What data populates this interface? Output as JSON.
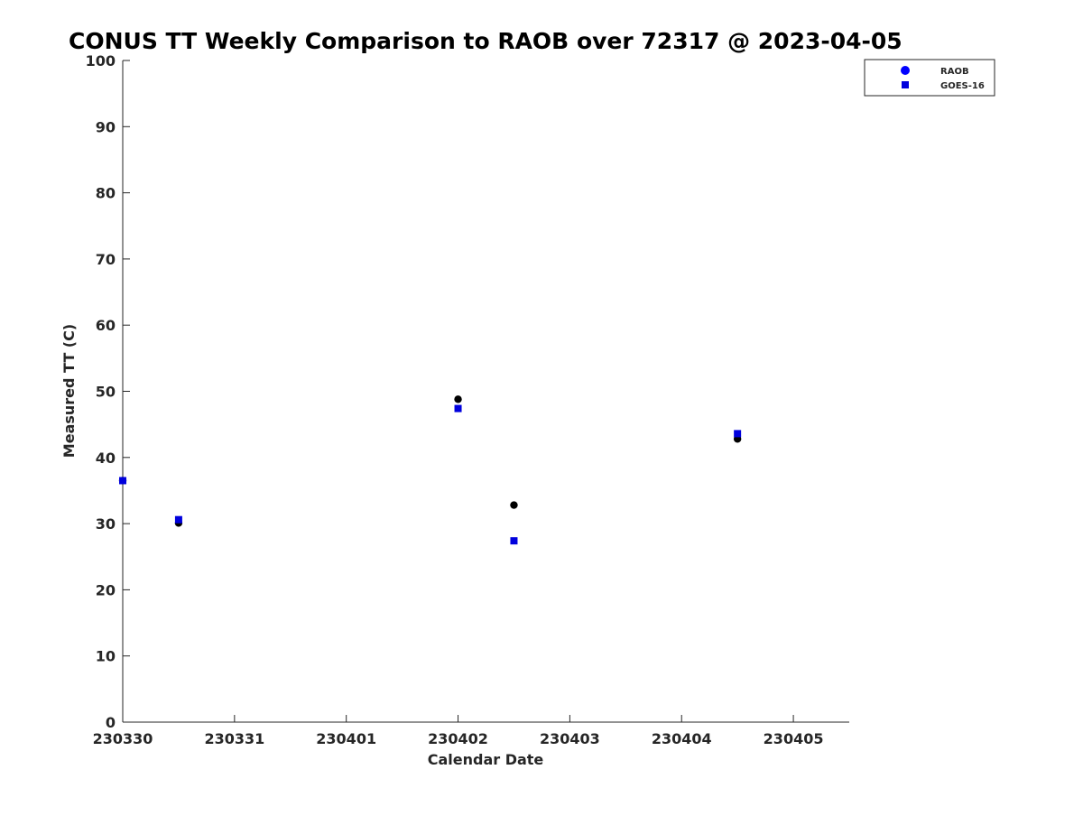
{
  "chart_data": {
    "type": "scatter",
    "title": "CONUS TT Weekly Comparison to RAOB over 72317 @ 2023-04-05",
    "xlabel": "Calendar Date",
    "ylabel": "Measured TT (C)",
    "x_ticks": [
      "230330",
      "230331",
      "230401",
      "230402",
      "230403",
      "230404",
      "230405"
    ],
    "xlim": [
      "2023-03-30T00:00",
      "2023-04-05T12:00"
    ],
    "ylim": [
      0,
      100
    ],
    "y_ticks": [
      0,
      10,
      20,
      30,
      40,
      50,
      60,
      70,
      80,
      90,
      100
    ],
    "grid": false,
    "legend_position": "top-right",
    "series": [
      {
        "name": "RAOB",
        "marker": "circle",
        "color": "#000000",
        "legend_color": "#0000ff",
        "points": [
          {
            "x": "2023-03-30T00:00",
            "y": 36.5
          },
          {
            "x": "2023-03-30T12:00",
            "y": 30.1
          },
          {
            "x": "2023-04-02T00:00",
            "y": 48.8
          },
          {
            "x": "2023-04-02T12:00",
            "y": 32.8
          },
          {
            "x": "2023-04-04T12:00",
            "y": 42.8
          }
        ]
      },
      {
        "name": "GOES-16",
        "marker": "square",
        "color": "#0000dd",
        "legend_color": "#0000dd",
        "points": [
          {
            "x": "2023-03-30T00:00",
            "y": 36.5
          },
          {
            "x": "2023-03-30T12:00",
            "y": 30.6
          },
          {
            "x": "2023-04-02T00:00",
            "y": 47.4
          },
          {
            "x": "2023-04-02T12:00",
            "y": 27.4
          },
          {
            "x": "2023-04-04T12:00",
            "y": 43.6
          }
        ]
      }
    ]
  }
}
